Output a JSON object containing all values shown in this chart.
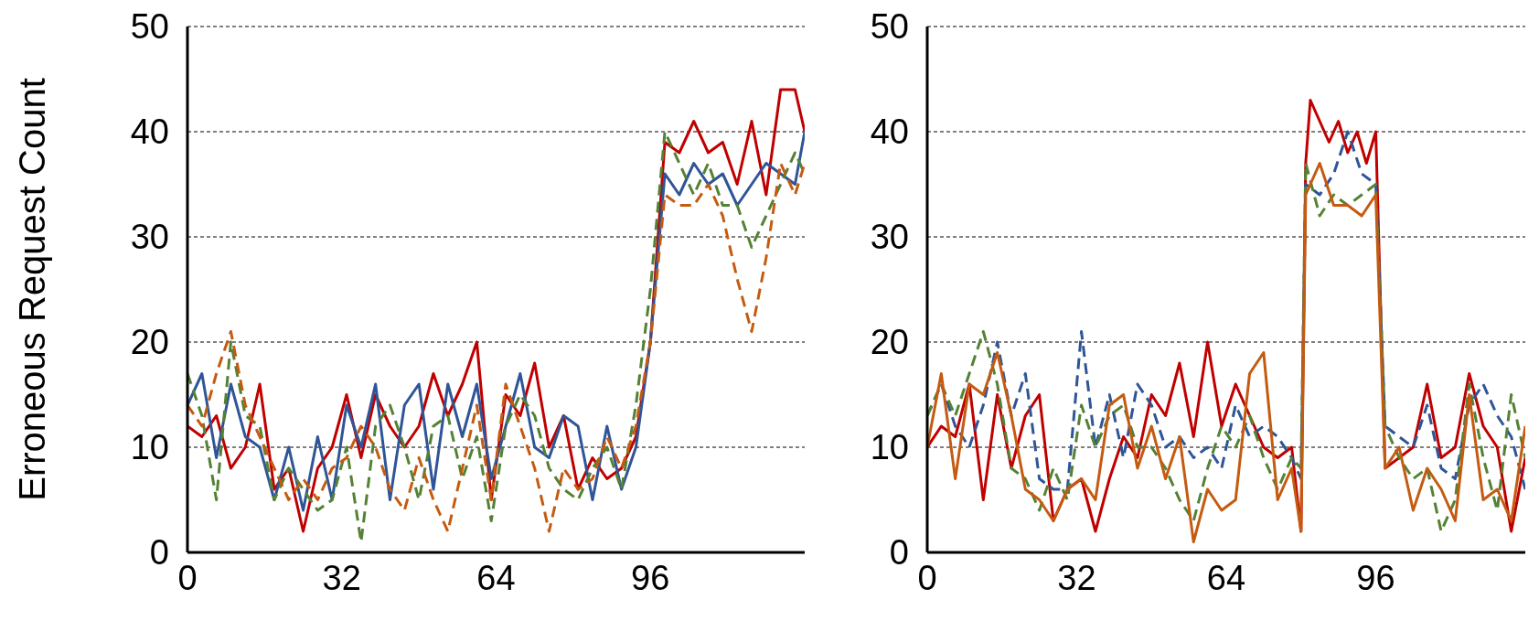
{
  "chart_data": [
    {
      "type": "line",
      "ylabel": "Erroneous Request Count",
      "xlim": [
        0,
        128
      ],
      "xticks": [
        0,
        32,
        64,
        96
      ],
      "ylim": [
        0,
        50
      ],
      "yticks": [
        0,
        10,
        20,
        30,
        40,
        50
      ],
      "grid": "y",
      "series": [
        {
          "color": "#c00000",
          "line_style": "solid",
          "x": [
            0,
            3,
            6,
            9,
            12,
            15,
            18,
            21,
            24,
            27,
            30,
            33,
            36,
            39,
            42,
            45,
            48,
            51,
            54,
            57,
            60,
            63,
            66,
            69,
            72,
            75,
            78,
            81,
            84,
            87,
            90,
            93,
            96,
            99,
            102,
            105,
            108,
            111,
            114,
            117,
            120,
            123,
            126,
            128
          ],
          "values": [
            12,
            11,
            13,
            8,
            10,
            16,
            6,
            8,
            2,
            8,
            10,
            15,
            9,
            15,
            12,
            10,
            12,
            17,
            13,
            16,
            20,
            5,
            15,
            13,
            18,
            10,
            13,
            6,
            9,
            7,
            8,
            11,
            20,
            39,
            38,
            41,
            38,
            39,
            35,
            41,
            34,
            44,
            44,
            40
          ]
        },
        {
          "color": "#2f5597",
          "line_style": "solid",
          "x": [
            0,
            3,
            6,
            9,
            12,
            15,
            18,
            21,
            24,
            27,
            30,
            33,
            36,
            39,
            42,
            45,
            48,
            51,
            54,
            57,
            60,
            63,
            66,
            69,
            72,
            75,
            78,
            81,
            84,
            87,
            90,
            93,
            96,
            99,
            102,
            105,
            108,
            111,
            114,
            117,
            120,
            123,
            126,
            128
          ],
          "values": [
            14,
            17,
            9,
            16,
            11,
            10,
            5,
            10,
            4,
            11,
            5,
            14,
            10,
            16,
            5,
            14,
            16,
            6,
            16,
            11,
            16,
            7,
            12,
            17,
            10,
            9,
            13,
            12,
            5,
            12,
            6,
            10,
            20,
            36,
            34,
            37,
            35,
            36,
            33,
            35,
            37,
            36,
            35,
            40
          ]
        },
        {
          "color": "#548235",
          "line_style": "dashed",
          "x": [
            0,
            3,
            6,
            9,
            12,
            15,
            18,
            21,
            24,
            27,
            30,
            33,
            36,
            39,
            42,
            45,
            48,
            51,
            54,
            57,
            60,
            63,
            66,
            69,
            72,
            75,
            78,
            81,
            84,
            87,
            90,
            93,
            96,
            99,
            102,
            105,
            108,
            111,
            114,
            117,
            120,
            123,
            126,
            128
          ],
          "values": [
            17,
            13,
            5,
            20,
            13,
            12,
            5,
            8,
            6,
            4,
            5,
            10,
            1,
            12,
            14,
            10,
            5,
            12,
            13,
            7,
            11,
            3,
            12,
            15,
            13,
            8,
            6,
            5,
            8,
            10,
            6,
            14,
            25,
            40,
            37,
            34,
            37,
            33,
            33,
            29,
            32,
            35,
            38,
            36
          ]
        },
        {
          "color": "#c55a11",
          "line_style": "dashed",
          "x": [
            0,
            3,
            6,
            9,
            12,
            15,
            18,
            21,
            24,
            27,
            30,
            33,
            36,
            39,
            42,
            45,
            48,
            51,
            54,
            57,
            60,
            63,
            66,
            69,
            72,
            75,
            78,
            81,
            84,
            87,
            90,
            93,
            96,
            99,
            102,
            105,
            108,
            111,
            114,
            117,
            120,
            123,
            126,
            128
          ],
          "values": [
            14,
            12,
            17,
            21,
            14,
            11,
            8,
            5,
            7,
            5,
            8,
            9,
            12,
            10,
            6,
            4,
            9,
            5,
            2,
            8,
            14,
            5,
            16,
            12,
            8,
            2,
            8,
            6,
            7,
            11,
            8,
            12,
            20,
            34,
            33,
            33,
            35,
            32,
            26,
            21,
            28,
            37,
            34,
            37
          ]
        }
      ]
    },
    {
      "type": "line",
      "xlim": [
        0,
        128
      ],
      "xticks": [
        0,
        32,
        64,
        96
      ],
      "ylim": [
        0,
        50
      ],
      "yticks": [
        0,
        10,
        20,
        30,
        40,
        50
      ],
      "grid": "y",
      "series": [
        {
          "color": "#c00000",
          "line_style": "solid",
          "x": [
            0,
            3,
            6,
            9,
            12,
            15,
            18,
            21,
            24,
            27,
            30,
            33,
            36,
            39,
            42,
            45,
            48,
            51,
            54,
            57,
            60,
            63,
            66,
            69,
            72,
            75,
            78,
            80,
            81,
            82,
            84,
            86,
            88,
            90,
            92,
            94,
            96,
            98,
            101,
            104,
            107,
            110,
            113,
            116,
            119,
            122,
            125,
            128
          ],
          "values": [
            10,
            12,
            11,
            16,
            5,
            15,
            8,
            13,
            15,
            3,
            6,
            7,
            2,
            7,
            11,
            9,
            15,
            13,
            18,
            11,
            20,
            12,
            16,
            13,
            10,
            9,
            10,
            2,
            37,
            43,
            41,
            39,
            41,
            38,
            40,
            37,
            40,
            8,
            9,
            10,
            16,
            9,
            10,
            17,
            12,
            10,
            2,
            9
          ]
        },
        {
          "color": "#2f5597",
          "line_style": "dashed",
          "x": [
            0,
            3,
            6,
            9,
            12,
            15,
            18,
            21,
            24,
            27,
            30,
            33,
            36,
            39,
            42,
            45,
            48,
            51,
            54,
            57,
            60,
            63,
            66,
            69,
            72,
            75,
            78,
            80,
            81,
            84,
            87,
            90,
            93,
            96,
            98,
            101,
            104,
            107,
            110,
            113,
            116,
            119,
            122,
            125,
            128
          ],
          "values": [
            13,
            16,
            12,
            10,
            14,
            20,
            13,
            17,
            7,
            6,
            6,
            21,
            10,
            15,
            9,
            16,
            14,
            10,
            11,
            9,
            10,
            8,
            14,
            11,
            12,
            11,
            9,
            7,
            35,
            34,
            36,
            40,
            36,
            35,
            12,
            11,
            10,
            14,
            8,
            7,
            14,
            16,
            13,
            11,
            6
          ]
        },
        {
          "color": "#548235",
          "line_style": "dashed",
          "x": [
            0,
            3,
            6,
            9,
            12,
            15,
            18,
            21,
            24,
            27,
            30,
            33,
            36,
            39,
            42,
            45,
            48,
            51,
            54,
            57,
            60,
            63,
            66,
            69,
            72,
            75,
            78,
            80,
            81,
            84,
            87,
            90,
            93,
            96,
            98,
            101,
            104,
            107,
            110,
            113,
            116,
            119,
            122,
            125,
            128
          ],
          "values": [
            13,
            16,
            13,
            17,
            21,
            16,
            8,
            7,
            4,
            8,
            5,
            14,
            10,
            13,
            14,
            10,
            10,
            8,
            5,
            3,
            8,
            12,
            10,
            13,
            9,
            6,
            9,
            8,
            37,
            32,
            34,
            33,
            34,
            35,
            12,
            9,
            7,
            8,
            2,
            5,
            16,
            9,
            4,
            15,
            9
          ]
        },
        {
          "color": "#c55a11",
          "line_style": "solid",
          "x": [
            0,
            3,
            6,
            9,
            12,
            15,
            18,
            21,
            24,
            27,
            30,
            33,
            36,
            39,
            42,
            45,
            48,
            51,
            54,
            57,
            60,
            63,
            66,
            69,
            72,
            75,
            78,
            80,
            81,
            84,
            87,
            90,
            93,
            96,
            98,
            101,
            104,
            107,
            110,
            113,
            116,
            119,
            122,
            125,
            128
          ],
          "values": [
            10,
            17,
            7,
            16,
            15,
            19,
            13,
            6,
            5,
            3,
            6,
            7,
            5,
            14,
            15,
            8,
            12,
            7,
            11,
            1,
            6,
            4,
            5,
            17,
            19,
            5,
            8,
            2,
            34,
            37,
            33,
            33,
            32,
            34,
            8,
            10,
            4,
            8,
            6,
            3,
            15,
            5,
            6,
            3,
            12
          ]
        }
      ]
    }
  ]
}
